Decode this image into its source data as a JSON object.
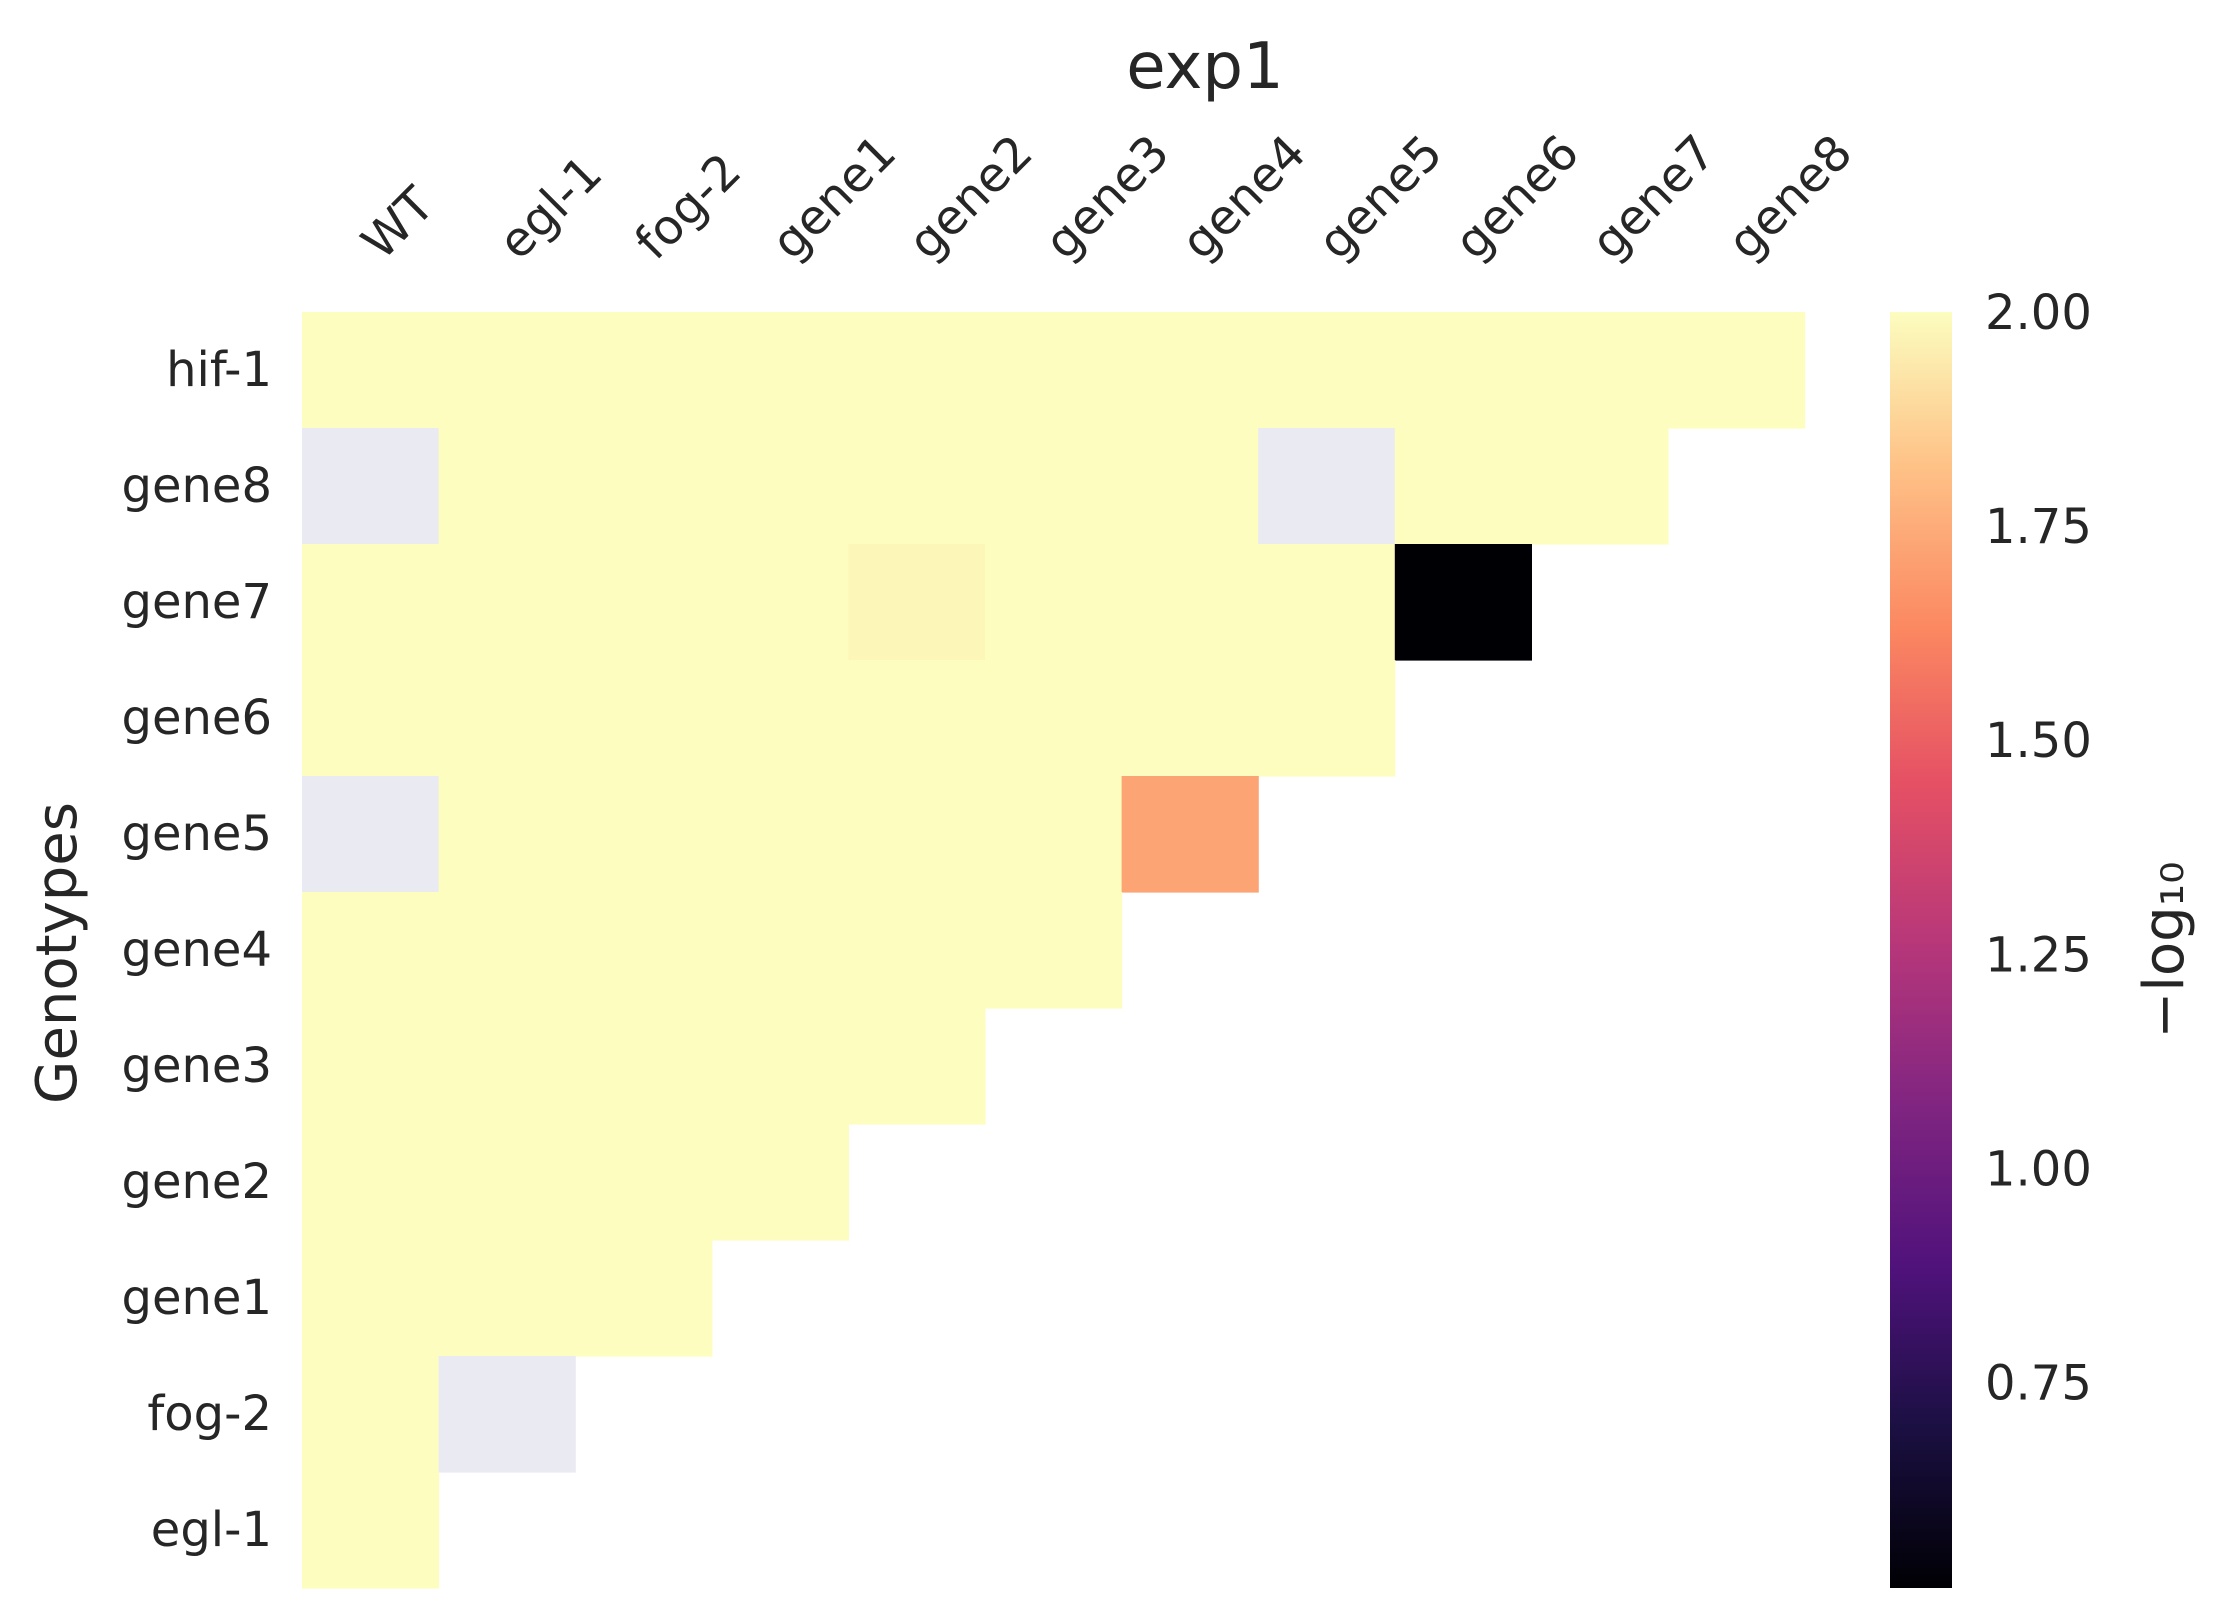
{
  "chart_data": {
    "type": "heatmap",
    "title": "exp1",
    "xlabel": "",
    "ylabel": "Genotypes",
    "x_categories": [
      "WT",
      "egl-1",
      "fog-2",
      "gene1",
      "gene2",
      "gene3",
      "gene4",
      "gene5",
      "gene6",
      "gene7",
      "gene8"
    ],
    "y_categories": [
      "hif-1",
      "gene8",
      "gene7",
      "gene6",
      "gene5",
      "gene4",
      "gene3",
      "gene2",
      "gene1",
      "fog-2",
      "egl-1"
    ],
    "values": [
      [
        2.0,
        2.0,
        2.0,
        2.0,
        2.0,
        2.0,
        2.0,
        2.0,
        2.0,
        2.0,
        2.0
      ],
      [
        null,
        2.0,
        2.0,
        2.0,
        2.0,
        2.0,
        2.0,
        null,
        2.0,
        2.0,
        "-"
      ],
      [
        2.0,
        2.0,
        2.0,
        2.0,
        1.98,
        2.0,
        2.0,
        2.0,
        0.51,
        "-",
        "-"
      ],
      [
        2.0,
        2.0,
        2.0,
        2.0,
        2.0,
        2.0,
        2.0,
        2.0,
        "-",
        "-",
        "-"
      ],
      [
        null,
        2.0,
        2.0,
        2.0,
        2.0,
        2.0,
        1.72,
        "-",
        "-",
        "-",
        "-"
      ],
      [
        2.0,
        2.0,
        2.0,
        2.0,
        2.0,
        2.0,
        "-",
        "-",
        "-",
        "-",
        "-"
      ],
      [
        2.0,
        2.0,
        2.0,
        2.0,
        2.0,
        "-",
        "-",
        "-",
        "-",
        "-",
        "-"
      ],
      [
        2.0,
        2.0,
        2.0,
        2.0,
        "-",
        "-",
        "-",
        "-",
        "-",
        "-",
        "-"
      ],
      [
        2.0,
        2.0,
        2.0,
        "-",
        "-",
        "-",
        "-",
        "-",
        "-",
        "-",
        "-"
      ],
      [
        2.0,
        null,
        "-",
        "-",
        "-",
        "-",
        "-",
        "-",
        "-",
        "-",
        "-"
      ],
      [
        2.0,
        "-",
        "-",
        "-",
        "-",
        "-",
        "-",
        "-",
        "-",
        "-",
        "-"
      ]
    ],
    "colormap": "magma",
    "vmin": 0.51,
    "vmax": 2.0,
    "nan_color": "#eaeaf2",
    "colorbar": {
      "ticks": [
        2.0,
        1.75,
        1.5,
        1.25,
        1.0,
        0.75
      ],
      "tick_labels": [
        "2.00",
        "1.75",
        "1.50",
        "1.25",
        "1.00",
        "0.75"
      ],
      "label": "−log₁₀"
    },
    "grid": false,
    "legend": "colorbar-right"
  }
}
